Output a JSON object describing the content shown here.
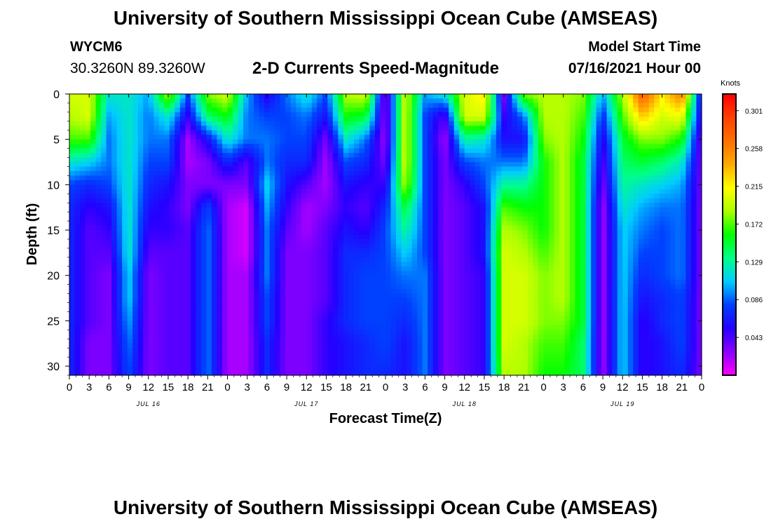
{
  "header": {
    "title": "University of Southern Mississippi Ocean Cube (AMSEAS)",
    "station_id": "WYCM6",
    "coordinates": "30.3260N  89.3260W",
    "subtitle": "2-D Currents Speed-Magnitude",
    "model_start_label": "Model Start Time",
    "model_start_value": "07/16/2021 Hour 00"
  },
  "footer": {
    "title": "University of Southern Mississippi Ocean Cube (AMSEAS)"
  },
  "colors": {
    "scale": [
      "#ff00ff",
      "#8a00ff",
      "#2400ff",
      "#0040ff",
      "#00ccff",
      "#00ff88",
      "#00ff00",
      "#aaff00",
      "#ffff00",
      "#ffaa00",
      "#ff7000",
      "#ff4000",
      "#ff0000"
    ]
  },
  "chart_data": {
    "type": "heatmap",
    "xlabel": "Forecast Time(Z)",
    "ylabel": "Depth (ft)",
    "units": "Knots",
    "x_tick_labels": [
      "0",
      "3",
      "6",
      "9",
      "12",
      "15",
      "18",
      "21",
      "0",
      "3",
      "6",
      "9",
      "12",
      "15",
      "18",
      "21",
      "0",
      "3",
      "6",
      "9",
      "12",
      "15",
      "18",
      "21",
      "0",
      "3",
      "6",
      "9",
      "12",
      "15",
      "18",
      "21",
      "0"
    ],
    "date_labels": [
      {
        "label": "JUL 16",
        "tick_index": 4
      },
      {
        "label": "JUL 17",
        "tick_index": 12
      },
      {
        "label": "JUL 18",
        "tick_index": 20
      },
      {
        "label": "JUL 19",
        "tick_index": 28
      }
    ],
    "x_range_hours": [
      0,
      96
    ],
    "y_ticks": [
      0,
      5,
      10,
      15,
      20,
      25,
      30
    ],
    "y_range": [
      0,
      31
    ],
    "y_inverted": true,
    "colorbar_ticks": [
      "0.301",
      "0.258",
      "0.215",
      "0.172",
      "0.129",
      "0.086",
      "0.043"
    ],
    "colorbar_range": [
      0.0,
      0.32
    ],
    "depths": [
      0,
      2.5,
      5,
      7.5,
      10,
      12.5,
      15,
      17.5,
      20,
      22.5,
      25,
      27.5,
      31
    ],
    "profiles": [
      {
        "hour": 0,
        "values": [
          0.2,
          0.19,
          0.17,
          0.12,
          0.08,
          0.07,
          0.07,
          0.07,
          0.07,
          0.07,
          0.07,
          0.07,
          0.07
        ]
      },
      {
        "hour": 3,
        "values": [
          0.2,
          0.2,
          0.17,
          0.11,
          0.07,
          0.05,
          0.04,
          0.04,
          0.04,
          0.04,
          0.04,
          0.03,
          0.03
        ]
      },
      {
        "hour": 6,
        "values": [
          0.12,
          0.1,
          0.09,
          0.09,
          0.08,
          0.06,
          0.05,
          0.04,
          0.03,
          0.03,
          0.03,
          0.03,
          0.03
        ]
      },
      {
        "hour": 9,
        "values": [
          0.12,
          0.12,
          0.12,
          0.12,
          0.12,
          0.12,
          0.12,
          0.12,
          0.11,
          0.11,
          0.1,
          0.09,
          0.08
        ]
      },
      {
        "hour": 12,
        "values": [
          0.1,
          0.09,
          0.09,
          0.08,
          0.07,
          0.06,
          0.05,
          0.04,
          0.03,
          0.03,
          0.03,
          0.03,
          0.03
        ]
      },
      {
        "hour": 15,
        "values": [
          0.19,
          0.12,
          0.09,
          0.08,
          0.06,
          0.05,
          0.05,
          0.04,
          0.04,
          0.04,
          0.04,
          0.04,
          0.04
        ]
      },
      {
        "hour": 18,
        "values": [
          0.08,
          0.05,
          0.02,
          0.02,
          0.03,
          0.03,
          0.04,
          0.04,
          0.04,
          0.04,
          0.04,
          0.04,
          0.04
        ]
      },
      {
        "hour": 21,
        "values": [
          0.18,
          0.14,
          0.06,
          0.03,
          0.03,
          0.08,
          0.09,
          0.09,
          0.09,
          0.09,
          0.09,
          0.09,
          0.09
        ]
      },
      {
        "hour": 24,
        "values": [
          0.2,
          0.16,
          0.12,
          0.07,
          0.03,
          0.02,
          0.02,
          0.02,
          0.02,
          0.02,
          0.02,
          0.02,
          0.02
        ]
      },
      {
        "hour": 27,
        "values": [
          0.1,
          0.09,
          0.09,
          0.04,
          0.03,
          0.01,
          0.01,
          0.01,
          0.02,
          0.02,
          0.02,
          0.02,
          0.02
        ]
      },
      {
        "hour": 30,
        "values": [
          0.05,
          0.08,
          0.09,
          0.09,
          0.11,
          0.1,
          0.09,
          0.09,
          0.09,
          0.08,
          0.08,
          0.07,
          0.07
        ]
      },
      {
        "hour": 33,
        "values": [
          0.09,
          0.08,
          0.08,
          0.07,
          0.06,
          0.05,
          0.04,
          0.03,
          0.03,
          0.03,
          0.03,
          0.03,
          0.03
        ]
      },
      {
        "hour": 36,
        "values": [
          0.12,
          0.09,
          0.08,
          0.07,
          0.04,
          0.02,
          0.02,
          0.03,
          0.03,
          0.03,
          0.03,
          0.03,
          0.03
        ]
      },
      {
        "hour": 39,
        "values": [
          0.08,
          0.06,
          0.03,
          0.02,
          0.02,
          0.03,
          0.04,
          0.04,
          0.04,
          0.04,
          0.05,
          0.05,
          0.05
        ]
      },
      {
        "hour": 42,
        "values": [
          0.19,
          0.16,
          0.12,
          0.08,
          0.06,
          0.05,
          0.06,
          0.07,
          0.07,
          0.07,
          0.07,
          0.06,
          0.06
        ]
      },
      {
        "hour": 45,
        "values": [
          0.2,
          0.15,
          0.09,
          0.07,
          0.05,
          0.04,
          0.05,
          0.07,
          0.08,
          0.08,
          0.08,
          0.07,
          0.07
        ]
      },
      {
        "hour": 48,
        "values": [
          0.02,
          0.02,
          0.02,
          0.03,
          0.05,
          0.07,
          0.08,
          0.08,
          0.08,
          0.08,
          0.08,
          0.08,
          0.07
        ]
      },
      {
        "hour": 51,
        "values": [
          0.2,
          0.2,
          0.2,
          0.2,
          0.19,
          0.15,
          0.13,
          0.11,
          0.09,
          0.08,
          0.07,
          0.06,
          0.06
        ]
      },
      {
        "hour": 54,
        "values": [
          0.1,
          0.08,
          0.08,
          0.08,
          0.08,
          0.08,
          0.08,
          0.08,
          0.09,
          0.09,
          0.09,
          0.09,
          0.09
        ]
      },
      {
        "hour": 57,
        "values": [
          0.12,
          0.04,
          0.02,
          0.03,
          0.03,
          0.03,
          0.03,
          0.03,
          0.03,
          0.03,
          0.03,
          0.03,
          0.03
        ]
      },
      {
        "hour": 60,
        "values": [
          0.2,
          0.2,
          0.13,
          0.08,
          0.05,
          0.04,
          0.04,
          0.04,
          0.04,
          0.04,
          0.04,
          0.04,
          0.04
        ]
      },
      {
        "hour": 63,
        "values": [
          0.22,
          0.2,
          0.12,
          0.09,
          0.08,
          0.06,
          0.06,
          0.06,
          0.05,
          0.05,
          0.05,
          0.05,
          0.05
        ]
      },
      {
        "hour": 66,
        "values": [
          0.03,
          0.05,
          0.06,
          0.09,
          0.13,
          0.17,
          0.19,
          0.2,
          0.2,
          0.2,
          0.2,
          0.2,
          0.19
        ]
      },
      {
        "hour": 69,
        "values": [
          0.18,
          0.09,
          0.06,
          0.09,
          0.13,
          0.16,
          0.18,
          0.19,
          0.2,
          0.2,
          0.2,
          0.19,
          0.19
        ]
      },
      {
        "hour": 72,
        "values": [
          0.19,
          0.19,
          0.18,
          0.16,
          0.16,
          0.16,
          0.16,
          0.17,
          0.18,
          0.18,
          0.18,
          0.17,
          0.16
        ]
      },
      {
        "hour": 75,
        "values": [
          0.19,
          0.19,
          0.19,
          0.19,
          0.19,
          0.19,
          0.19,
          0.19,
          0.19,
          0.19,
          0.18,
          0.17,
          0.16
        ]
      },
      {
        "hour": 78,
        "values": [
          0.18,
          0.17,
          0.16,
          0.15,
          0.15,
          0.15,
          0.15,
          0.15,
          0.15,
          0.15,
          0.15,
          0.14,
          0.14
        ]
      },
      {
        "hour": 81,
        "values": [
          0.1,
          0.07,
          0.05,
          0.04,
          0.03,
          0.02,
          0.02,
          0.02,
          0.02,
          0.02,
          0.02,
          0.02,
          0.02
        ]
      },
      {
        "hour": 84,
        "values": [
          0.19,
          0.17,
          0.15,
          0.14,
          0.13,
          0.12,
          0.11,
          0.11,
          0.11,
          0.11,
          0.11,
          0.11,
          0.11
        ]
      },
      {
        "hour": 87,
        "values": [
          0.28,
          0.23,
          0.18,
          0.15,
          0.12,
          0.1,
          0.09,
          0.08,
          0.07,
          0.06,
          0.05,
          0.05,
          0.05
        ]
      },
      {
        "hour": 90,
        "values": [
          0.22,
          0.2,
          0.18,
          0.14,
          0.11,
          0.09,
          0.08,
          0.08,
          0.08,
          0.07,
          0.07,
          0.06,
          0.06
        ]
      },
      {
        "hour": 93,
        "values": [
          0.26,
          0.21,
          0.16,
          0.12,
          0.1,
          0.09,
          0.09,
          0.09,
          0.09,
          0.08,
          0.08,
          0.08,
          0.07
        ]
      },
      {
        "hour": 96,
        "values": [
          0.05,
          0.04,
          0.03,
          0.03,
          0.03,
          0.03,
          0.03,
          0.03,
          0.03,
          0.03,
          0.03,
          0.03,
          0.03
        ]
      }
    ]
  }
}
